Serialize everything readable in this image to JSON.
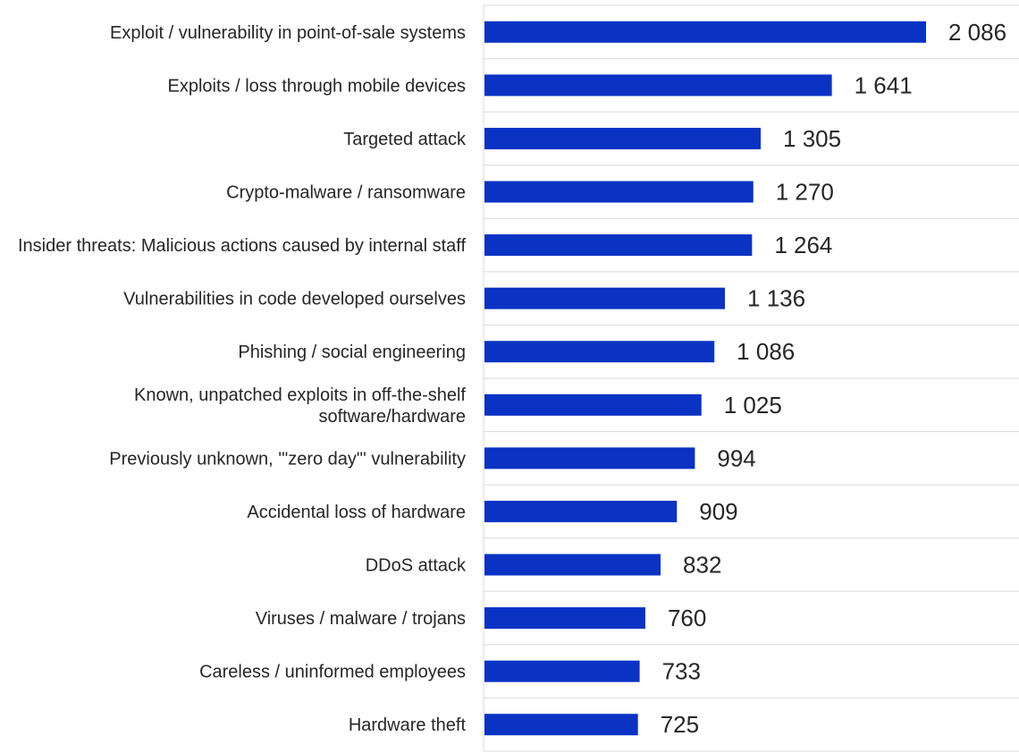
{
  "chart_data": {
    "type": "bar",
    "orientation": "horizontal",
    "categories": [
      [
        "Exploit / vulnerability in point-of-sale systems"
      ],
      [
        "Exploits / loss through mobile devices"
      ],
      [
        "Targeted attack"
      ],
      [
        "Crypto-malware / ransomware"
      ],
      [
        "Insider threats: Malicious actions caused by internal staff"
      ],
      [
        "Vulnerabilities in code developed ourselves"
      ],
      [
        "Phishing / social engineering"
      ],
      [
        "Known, unpatched exploits in off-the-shelf",
        "software/hardware"
      ],
      [
        "Previously unknown, '\"zero day\"' vulnerability"
      ],
      [
        "Accidental loss of hardware"
      ],
      [
        "DDoS attack"
      ],
      [
        "Viruses / malware / trojans"
      ],
      [
        "Careless / uninformed employees"
      ],
      [
        "Hardware theft"
      ]
    ],
    "values": [
      2086,
      1641,
      1305,
      1270,
      1264,
      1136,
      1086,
      1025,
      994,
      909,
      832,
      760,
      733,
      725
    ],
    "value_labels": [
      "2 086",
      "1 641",
      "1 305",
      "1 270",
      "1 264",
      "1 136",
      "1 086",
      "1 025",
      "994",
      "909",
      "832",
      "760",
      "733",
      "725"
    ],
    "xlim": [
      0,
      2150
    ],
    "bar_color": "#0a33c4",
    "grid": true,
    "grid_color": "#d9d9d9",
    "title": "",
    "xlabel": "",
    "ylabel": ""
  }
}
